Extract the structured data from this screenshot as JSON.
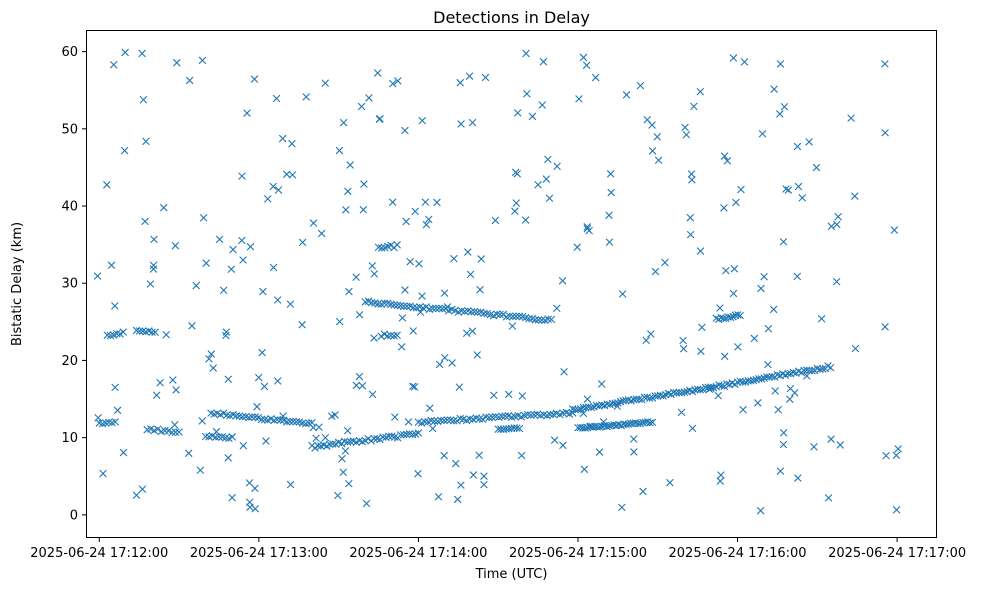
{
  "chart_data": {
    "type": "scatter",
    "title": "Detections in Delay",
    "xlabel": "Time (UTC)",
    "ylabel": "Bistatic Delay (km)",
    "marker": "x",
    "color": "#1f77b4",
    "x_unit": "seconds since 2025-06-24 17:12:00",
    "xlim": [
      -5,
      315
    ],
    "ylim": [
      -3.0,
      62.8
    ],
    "xticks": [
      {
        "value": 0,
        "label": "2025-06-24 17:12:00"
      },
      {
        "value": 60,
        "label": "2025-06-24 17:13:00"
      },
      {
        "value": 120,
        "label": "2025-06-24 17:14:00"
      },
      {
        "value": 180,
        "label": "2025-06-24 17:15:00"
      },
      {
        "value": 240,
        "label": "2025-06-24 17:16:00"
      },
      {
        "value": 300,
        "label": "2025-06-24 17:17:00"
      }
    ],
    "yticks": [
      {
        "value": 0,
        "label": "0"
      },
      {
        "value": 10,
        "label": "10"
      },
      {
        "value": 20,
        "label": "20"
      },
      {
        "value": 30,
        "label": "30"
      },
      {
        "value": 40,
        "label": "40"
      },
      {
        "value": 50,
        "label": "50"
      },
      {
        "value": 60,
        "label": "60"
      }
    ],
    "tracks": [
      {
        "name": "track-a",
        "x_start": 42,
        "y_start": 13.2,
        "x_end": 80,
        "y_end": 11.8,
        "step": 1.2,
        "jitter": 0.15
      },
      {
        "name": "track-b",
        "x_start": 80,
        "y_start": 8.8,
        "x_end": 120,
        "y_end": 10.5,
        "step": 1.1,
        "jitter": 0.2
      },
      {
        "name": "track-c",
        "x_start": 120,
        "y_start": 12.0,
        "x_end": 178,
        "y_end": 13.2,
        "step": 1.2,
        "jitter": 0.15
      },
      {
        "name": "track-d",
        "x_start": 178,
        "y_start": 13.6,
        "x_end": 230,
        "y_end": 16.5,
        "step": 1.0,
        "jitter": 0.15
      },
      {
        "name": "track-e",
        "x_start": 230,
        "y_start": 16.5,
        "x_end": 275,
        "y_end": 19.2,
        "step": 1.0,
        "jitter": 0.15
      },
      {
        "name": "track-f",
        "x_start": 100,
        "y_start": 27.6,
        "x_end": 170,
        "y_end": 25.2,
        "step": 1.2,
        "jitter": 0.15
      },
      {
        "name": "track-g",
        "x_start": 180,
        "y_start": 11.2,
        "x_end": 208,
        "y_end": 12.0,
        "step": 0.9,
        "jitter": 0.1
      },
      {
        "name": "track-h",
        "x_start": 0,
        "y_start": 11.8,
        "x_end": 6,
        "y_end": 12.0,
        "step": 1.2,
        "jitter": 0.1
      },
      {
        "name": "track-i",
        "x_start": 40,
        "y_start": 10.2,
        "x_end": 50,
        "y_end": 10.0,
        "step": 1.2,
        "jitter": 0.2
      },
      {
        "name": "track-j",
        "x_start": 3,
        "y_start": 23.2,
        "x_end": 9,
        "y_end": 23.6,
        "step": 1.2,
        "jitter": 0.1
      },
      {
        "name": "track-k",
        "x_start": 14,
        "y_start": 23.8,
        "x_end": 21,
        "y_end": 23.7,
        "step": 1.2,
        "jitter": 0.1
      },
      {
        "name": "track-l",
        "x_start": 232,
        "y_start": 25.4,
        "x_end": 241,
        "y_end": 25.8,
        "step": 0.9,
        "jitter": 0.15
      },
      {
        "name": "track-m",
        "x_start": 18,
        "y_start": 11.0,
        "x_end": 30,
        "y_end": 10.8,
        "step": 1.3,
        "jitter": 0.2
      },
      {
        "name": "track-n",
        "x_start": 150,
        "y_start": 11.0,
        "x_end": 158,
        "y_end": 11.2,
        "step": 1.0,
        "jitter": 0.15
      },
      {
        "name": "track-o",
        "x_start": 106,
        "y_start": 23.3,
        "x_end": 112,
        "y_end": 23.4,
        "step": 1.2,
        "jitter": 0.2
      },
      {
        "name": "track-p",
        "x_start": 105,
        "y_start": 34.6,
        "x_end": 112,
        "y_end": 34.8,
        "step": 1.2,
        "jitter": 0.2
      }
    ],
    "clutter": {
      "count": 330,
      "x_range": [
        -1,
        301
      ],
      "y_range": [
        0.5,
        60
      ],
      "seed": 20250624
    }
  }
}
